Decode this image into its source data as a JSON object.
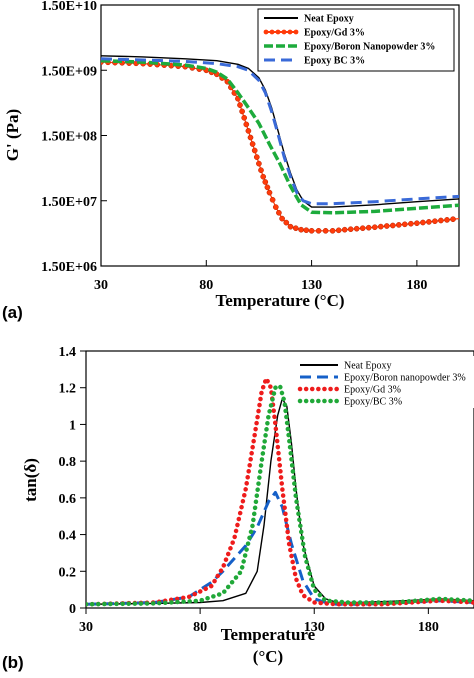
{
  "chart_data": [
    {
      "type": "line",
      "panel_label": "(a)",
      "xlabel": "Temperature (°C)",
      "ylabel": "G' (Pa)",
      "xlim": [
        30,
        200
      ],
      "x_ticks": [
        30,
        80,
        130,
        180
      ],
      "x_tick_labels": [
        "30",
        "80",
        "130",
        "180"
      ],
      "yscale": "log",
      "ylim": [
        1500000,
        15000000000
      ],
      "y_ticks": [
        1500000,
        15000000,
        150000000,
        1500000000,
        15000000000
      ],
      "y_tick_labels": [
        "1.50E+06",
        "1.50E+07",
        "1.50E+08",
        "1.50E+09",
        "1.50E+10"
      ],
      "legend_position": "top-right",
      "series": [
        {
          "name": "Neat Epoxy",
          "color": "#000000",
          "style": "solid",
          "x": [
            30,
            50,
            70,
            85,
            95,
            100,
            105,
            108,
            111,
            114,
            117,
            120,
            123,
            126,
            130,
            140,
            160,
            180,
            200
          ],
          "y": [
            2500000000,
            2400000000,
            2250000000,
            2100000000,
            1850000000,
            1600000000,
            1150000000,
            750000000,
            400000000,
            180000000,
            80000000,
            40000000,
            22000000,
            15000000,
            12000000,
            12000000,
            13000000,
            14500000,
            16000000
          ]
        },
        {
          "name": "Epoxy/Gd 3%",
          "color": "#ff3b0a",
          "style": "dotted-marker",
          "x": [
            30,
            50,
            70,
            80,
            85,
            90,
            95,
            98,
            101,
            104,
            107,
            110,
            113,
            116,
            120,
            125,
            130,
            140,
            160,
            180,
            200
          ],
          "y": [
            2000000000,
            1900000000,
            1700000000,
            1500000000,
            1300000000,
            1000000000,
            550000000,
            280000000,
            140000000,
            70000000,
            35000000,
            20000000,
            12000000,
            8000000,
            6000000,
            5400000,
            5200000,
            5200000,
            5900000,
            6800000,
            8000000
          ]
        },
        {
          "name": "Epoxy/Boron Nanopowder 3%",
          "color": "#1dab3c",
          "style": "dashed-marker",
          "x": [
            30,
            50,
            70,
            80,
            85,
            90,
            95,
            100,
            105,
            110,
            115,
            120,
            125,
            130,
            140,
            160,
            180,
            200
          ],
          "y": [
            2100000000,
            2000000000,
            1800000000,
            1600000000,
            1400000000,
            1100000000,
            680000000,
            400000000,
            230000000,
            110000000,
            55000000,
            25000000,
            13000000,
            10000000,
            9800000,
            10300000,
            11500000,
            12800000
          ]
        },
        {
          "name": "Epoxy BC 3%",
          "color": "#3a6ad8",
          "style": "long-dashed",
          "x": [
            30,
            50,
            70,
            85,
            95,
            100,
            105,
            108,
            111,
            114,
            117,
            120,
            123,
            126,
            130,
            140,
            160,
            180,
            200
          ],
          "y": [
            2250000000,
            2150000000,
            2050000000,
            1900000000,
            1700000000,
            1500000000,
            1050000000,
            680000000,
            350000000,
            160000000,
            70000000,
            35000000,
            20000000,
            15000000,
            13500000,
            13500000,
            14500000,
            16000000,
            17500000
          ]
        }
      ]
    },
    {
      "type": "line",
      "panel_label": "(b)",
      "xlabel": "Temperature (°C)",
      "ylabel": "tan(δ)",
      "xlim": [
        30,
        200
      ],
      "x_ticks": [
        30,
        80,
        130,
        180
      ],
      "x_tick_labels": [
        "30",
        "80",
        "130",
        "180"
      ],
      "ylim": [
        0,
        1.4
      ],
      "y_ticks": [
        0,
        0.2,
        0.4,
        0.6,
        0.8,
        1,
        1.2,
        1.4
      ],
      "y_tick_labels": [
        "0",
        "0.2",
        "0.4",
        "0.6",
        "0.8",
        "1",
        "1.2",
        "1.4"
      ],
      "legend_position": "top-right",
      "series": [
        {
          "name": "Neat Epoxy",
          "color": "#000000",
          "style": "solid",
          "x": [
            30,
            60,
            80,
            90,
            100,
            105,
            108,
            111,
            114,
            116,
            118,
            120,
            122,
            125,
            130,
            135,
            140,
            150,
            170,
            185,
            200
          ],
          "y": [
            0.02,
            0.025,
            0.03,
            0.04,
            0.08,
            0.2,
            0.45,
            0.8,
            1.05,
            1.14,
            1.1,
            0.9,
            0.65,
            0.35,
            0.12,
            0.05,
            0.03,
            0.03,
            0.04,
            0.05,
            0.04
          ]
        },
        {
          "name": "Epoxy/Boron nanopowder 3%",
          "color": "#1560c8",
          "style": "long-dashed",
          "x": [
            30,
            60,
            75,
            85,
            90,
            95,
            100,
            105,
            110,
            113,
            116,
            120,
            125,
            130,
            135,
            140,
            150,
            170,
            185,
            200
          ],
          "y": [
            0.02,
            0.03,
            0.06,
            0.14,
            0.2,
            0.27,
            0.34,
            0.44,
            0.58,
            0.63,
            0.55,
            0.35,
            0.15,
            0.05,
            0.03,
            0.02,
            0.02,
            0.03,
            0.04,
            0.03
          ]
        },
        {
          "name": "Epoxy/Gd 3%",
          "color": "#ee1c1c",
          "style": "dotted",
          "x": [
            30,
            60,
            75,
            85,
            90,
            95,
            100,
            104,
            107,
            109,
            111,
            113,
            116,
            119,
            122,
            125,
            130,
            140,
            160,
            185,
            200
          ],
          "y": [
            0.02,
            0.03,
            0.06,
            0.12,
            0.22,
            0.38,
            0.65,
            0.95,
            1.18,
            1.25,
            1.2,
            1.0,
            0.65,
            0.35,
            0.16,
            0.07,
            0.03,
            0.02,
            0.02,
            0.04,
            0.03
          ]
        },
        {
          "name": "Epoxy/BC 3%",
          "color": "#20a838",
          "style": "dotted",
          "x": [
            30,
            60,
            80,
            90,
            98,
            103,
            107,
            110,
            113,
            115,
            117,
            119,
            122,
            126,
            130,
            135,
            145,
            165,
            185,
            200
          ],
          "y": [
            0.02,
            0.025,
            0.04,
            0.08,
            0.2,
            0.45,
            0.8,
            1.05,
            1.2,
            1.21,
            1.12,
            0.92,
            0.6,
            0.28,
            0.1,
            0.04,
            0.03,
            0.03,
            0.05,
            0.04
          ]
        }
      ]
    }
  ]
}
